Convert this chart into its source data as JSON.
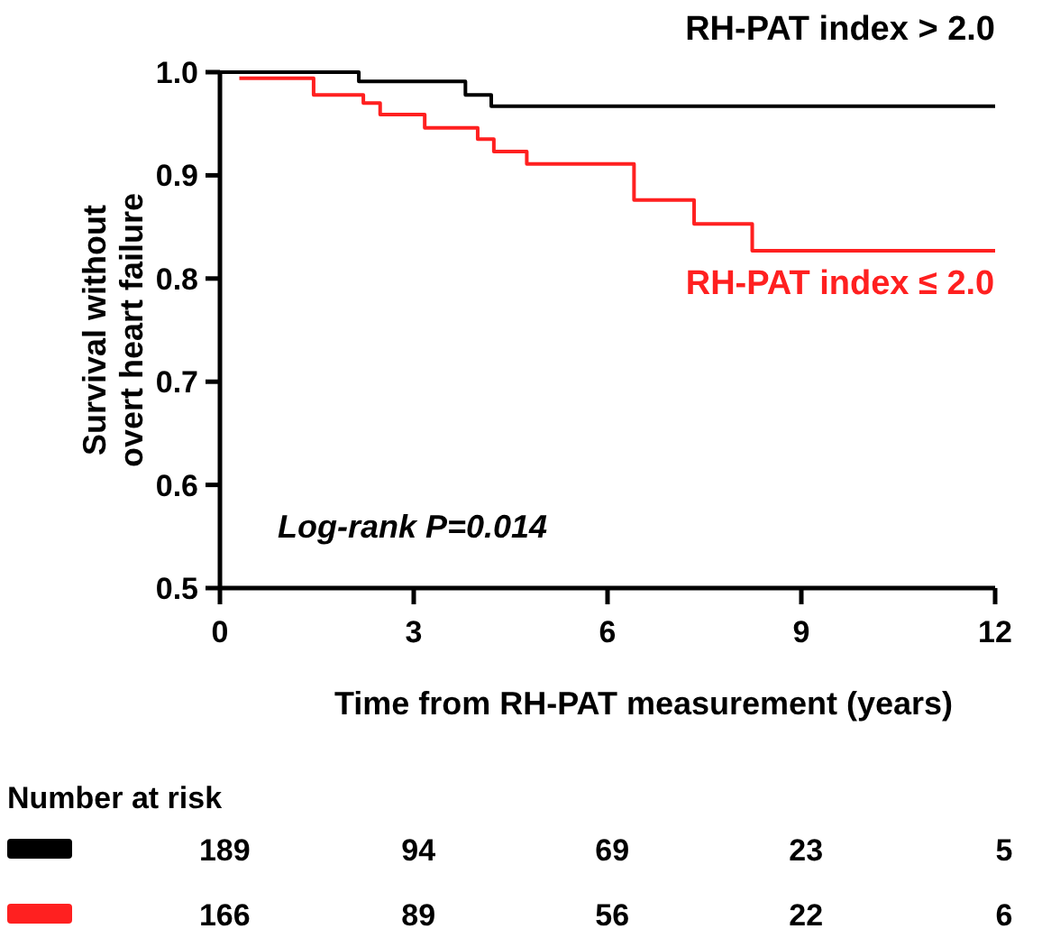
{
  "chart_data": {
    "type": "step",
    "xlabel": "Time from RH-PAT measurement (years)",
    "ylabel": "Survival without overt heart failure",
    "xlim": [
      0,
      12
    ],
    "xticks": [
      0,
      3,
      6,
      9,
      12
    ],
    "ylim": [
      0.5,
      1.0
    ],
    "yticks": [
      {
        "value": 0.5,
        "label": "0.5"
      },
      {
        "value": 0.6,
        "label": "0.6"
      },
      {
        "value": 0.7,
        "label": "0.7"
      },
      {
        "value": 0.8,
        "label": "0.8"
      },
      {
        "value": 0.9,
        "label": "0.9"
      },
      {
        "value": 1.0,
        "label": "1.0"
      }
    ],
    "grid": false,
    "legend": false,
    "series": [
      {
        "name": "RH-PAT index > 2.0",
        "color": "#000000",
        "x": [
          0,
          2.15,
          3.8,
          4.2,
          12
        ],
        "values": [
          1.0,
          0.991,
          0.978,
          0.967,
          0.967
        ]
      },
      {
        "name": "RH-PAT index ≤ 2.0",
        "color": "#ff2020",
        "x": [
          0.3,
          1.45,
          2.22,
          2.48,
          3.17,
          3.99,
          4.24,
          4.75,
          6.41,
          7.34,
          8.24,
          12
        ],
        "values": [
          0.994,
          0.978,
          0.97,
          0.959,
          0.946,
          0.935,
          0.923,
          0.911,
          0.876,
          0.853,
          0.827,
          0.827
        ]
      }
    ],
    "annotations": [
      "Log-rank P=0.014",
      "Number at risk",
      "189 94 69 23 5",
      "166 89 56 22 6"
    ]
  }
}
